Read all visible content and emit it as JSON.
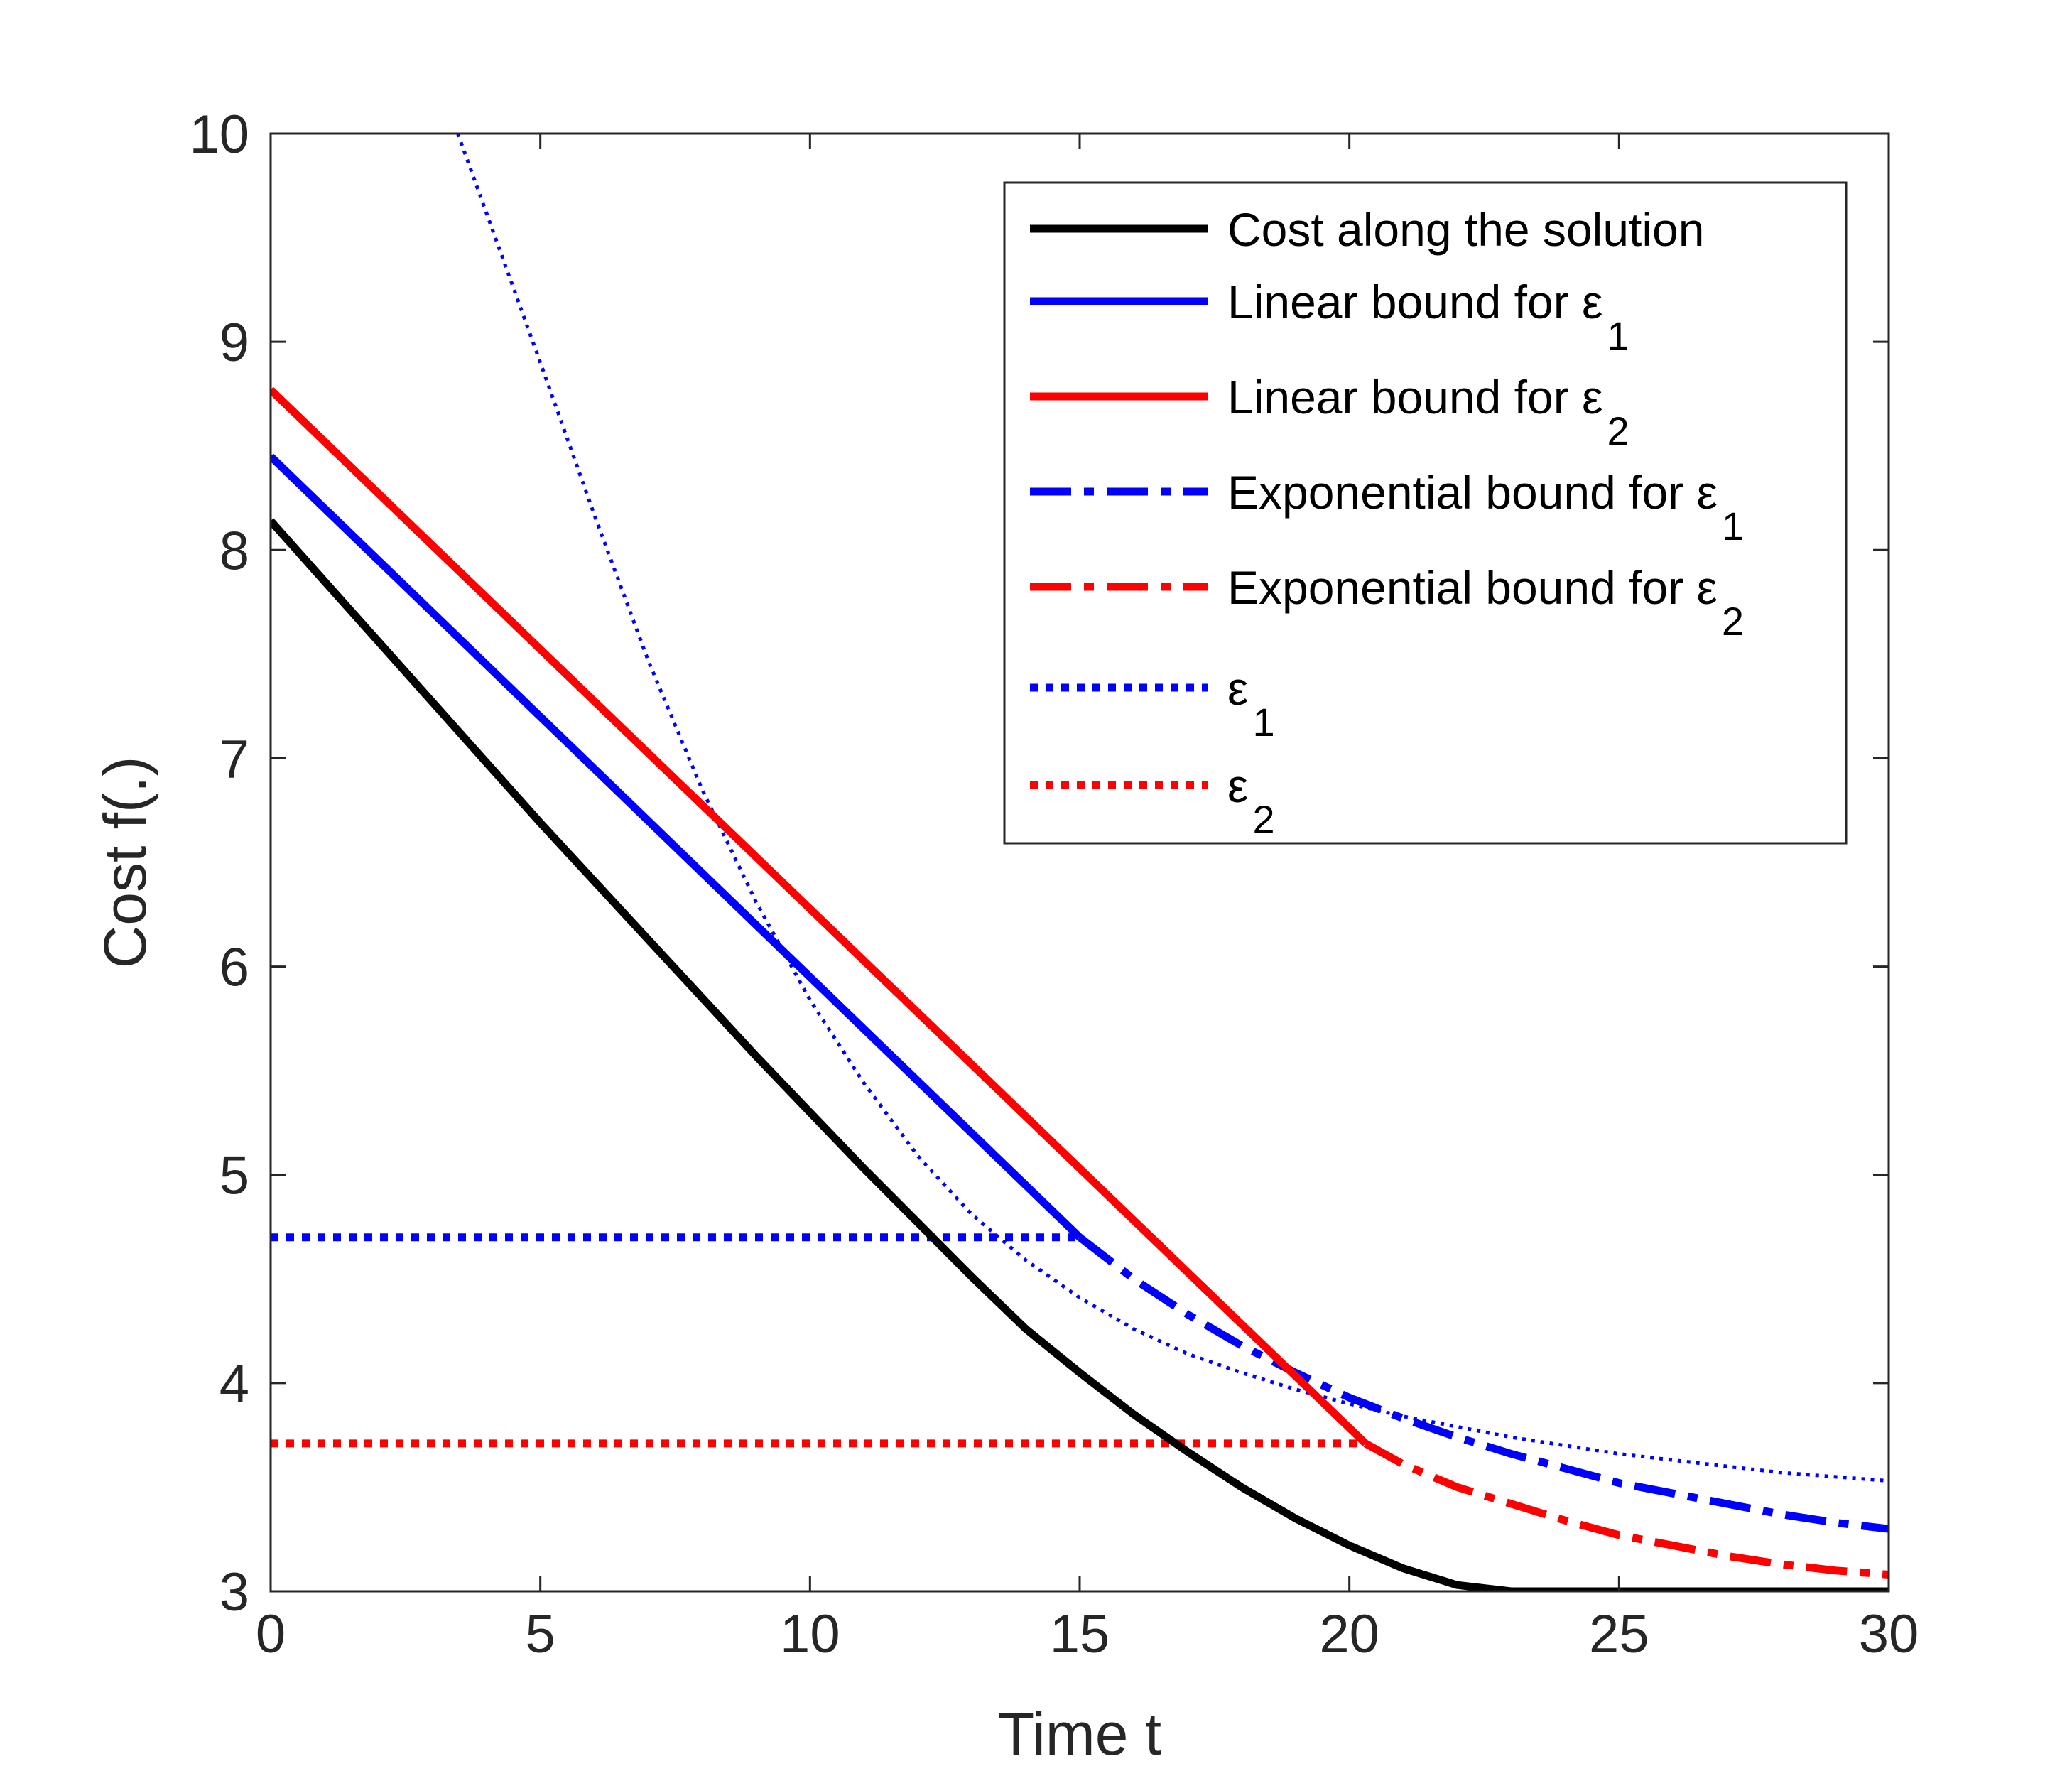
{
  "chart_data": {
    "type": "line",
    "title": "",
    "xlabel": "Time t",
    "ylabel": "Cost f(.)",
    "xlim": [
      0,
      30
    ],
    "ylim": [
      3,
      10
    ],
    "xticks": [
      0,
      5,
      10,
      15,
      20,
      25,
      30
    ],
    "yticks": [
      3,
      4,
      5,
      6,
      7,
      8,
      9,
      10
    ],
    "grid": false,
    "legend_position": "top-right",
    "series": [
      {
        "name": "Cost along the solution",
        "legend_main": "Cost along the solution",
        "legend_sub": "",
        "color": "#000000",
        "style": "solid",
        "x": [
          0,
          1,
          2,
          3,
          4,
          5,
          6,
          7,
          8,
          9,
          10,
          11,
          12,
          13,
          14,
          15,
          16,
          17,
          18,
          19,
          20,
          21,
          22,
          23,
          24,
          25,
          26,
          27,
          28,
          29,
          30
        ],
        "y": [
          8.14,
          7.85,
          7.56,
          7.27,
          6.98,
          6.69,
          6.41,
          6.13,
          5.85,
          5.57,
          5.3,
          5.03,
          4.77,
          4.51,
          4.26,
          4.05,
          3.85,
          3.67,
          3.5,
          3.35,
          3.22,
          3.11,
          3.03,
          3.0,
          3.0,
          3.0,
          3.0,
          3.0,
          3.0,
          3.0,
          3.0
        ]
      },
      {
        "name": "Linear bound for ε1",
        "legend_main": "Linear bound for ε",
        "legend_sub": "1",
        "color": "#0000FF",
        "style": "solid",
        "x": [
          0,
          15
        ],
        "y": [
          8.45,
          4.7
        ]
      },
      {
        "name": "Linear bound for ε2",
        "legend_main": "Linear bound for ε",
        "legend_sub": "2",
        "color": "#FF0000",
        "style": "solid",
        "x": [
          0,
          20.3
        ],
        "y": [
          8.77,
          3.71
        ]
      },
      {
        "name": "Exponential bound for ε1",
        "legend_main": "Exponential bound for ε",
        "legend_sub": "1",
        "color": "#0000FF",
        "style": "dashdot",
        "x": [
          15,
          16,
          17,
          18,
          19,
          20,
          21,
          22,
          23,
          24,
          25,
          26,
          27,
          28,
          29,
          30
        ],
        "y": [
          4.7,
          4.5,
          4.33,
          4.18,
          4.05,
          3.93,
          3.83,
          3.74,
          3.66,
          3.59,
          3.52,
          3.47,
          3.42,
          3.37,
          3.33,
          3.3
        ]
      },
      {
        "name": "Exponential bound for ε2",
        "legend_main": "Exponential bound for ε",
        "legend_sub": "2",
        "color": "#FF0000",
        "style": "dashdot",
        "x": [
          20.3,
          21,
          22,
          23,
          24,
          25,
          26,
          27,
          28,
          29,
          30
        ],
        "y": [
          3.71,
          3.61,
          3.5,
          3.42,
          3.34,
          3.27,
          3.22,
          3.17,
          3.13,
          3.1,
          3.08
        ]
      },
      {
        "name": "ε1",
        "legend_main": "ε",
        "legend_sub": "1",
        "color": "#0000FF",
        "style": "dotted",
        "x": [
          0,
          15
        ],
        "y": [
          4.7,
          4.7
        ]
      },
      {
        "name": "ε2",
        "legend_main": "ε",
        "legend_sub": "2",
        "color": "#FF0000",
        "style": "dotted",
        "x": [
          0,
          20.3
        ],
        "y": [
          3.71,
          3.71
        ]
      },
      {
        "name": "ε1 curve",
        "color": "#0000FF",
        "style": "thin-dotted",
        "in_legend": false,
        "x": [
          3.47,
          4,
          5,
          6,
          7,
          8,
          9,
          10,
          11,
          12,
          13,
          14,
          15,
          16,
          17,
          18,
          19,
          20,
          21,
          22,
          23,
          24,
          25,
          26,
          27,
          28,
          29,
          30
        ],
        "y": [
          10.0,
          9.62,
          8.9,
          8.17,
          7.47,
          6.85,
          6.31,
          5.84,
          5.44,
          5.09,
          4.81,
          4.59,
          4.41,
          4.26,
          4.14,
          4.05,
          3.97,
          3.9,
          3.84,
          3.79,
          3.74,
          3.7,
          3.66,
          3.63,
          3.6,
          3.57,
          3.55,
          3.53
        ]
      }
    ]
  }
}
